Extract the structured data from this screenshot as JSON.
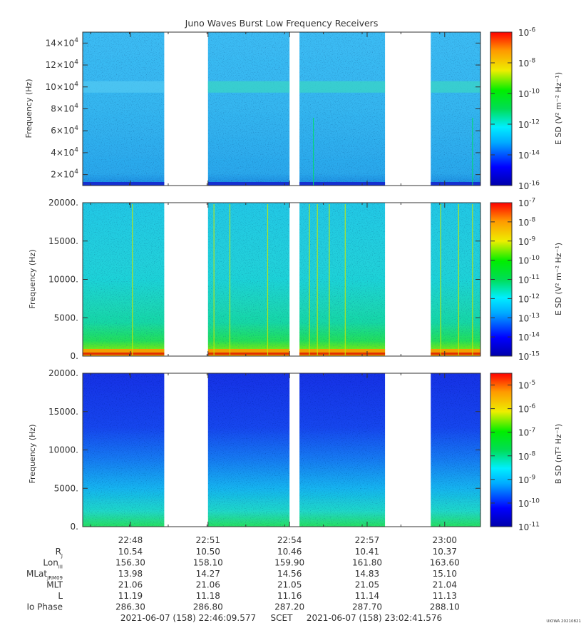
{
  "title": "Juno Waves Burst Low Frequency Receivers",
  "chart_data": [
    {
      "type": "heatmap",
      "name": "e-high",
      "ylabel": "Frequency (Hz)",
      "ylim": [
        10000,
        150000
      ],
      "yticks": [
        {
          "v": 20000,
          "m": "2×10",
          "e": "4"
        },
        {
          "v": 40000,
          "m": "4×10",
          "e": "4"
        },
        {
          "v": 60000,
          "m": "6×10",
          "e": "4"
        },
        {
          "v": 80000,
          "m": "8×10",
          "e": "4"
        },
        {
          "v": 100000,
          "m": "10×10",
          "e": "4"
        },
        {
          "v": 120000,
          "m": "12×10",
          "e": "4"
        },
        {
          "v": 140000,
          "m": "14×10",
          "e": "4"
        }
      ],
      "colorbar": {
        "label": "E SD (V² m⁻² Hz⁻¹)",
        "log_range": [
          -16,
          -6
        ],
        "ticks": [
          {
            "m": "10",
            "e": "-6"
          },
          {
            "m": "10",
            "e": "-8"
          },
          {
            "m": "10",
            "e": "-10"
          },
          {
            "m": "10",
            "e": "-12"
          },
          {
            "m": "10",
            "e": "-14"
          },
          {
            "m": "10",
            "e": "-16"
          }
        ]
      },
      "background_level": "cyan",
      "features": "narrow band near 1×10^5 Hz, noise floor line near 1.2×10^4 Hz"
    },
    {
      "type": "heatmap",
      "name": "e-low",
      "ylabel": "Frequency (Hz)",
      "ylim": [
        0,
        20000
      ],
      "yticks": [
        {
          "v": 0,
          "m": "0.",
          "e": ""
        },
        {
          "v": 5000,
          "m": "5000.",
          "e": ""
        },
        {
          "v": 10000,
          "m": "10000.",
          "e": ""
        },
        {
          "v": 15000,
          "m": "15000.",
          "e": ""
        },
        {
          "v": 20000,
          "m": "20000.",
          "e": ""
        }
      ],
      "colorbar": {
        "label": "E SD (V² m⁻² Hz⁻¹)",
        "log_range": [
          -15,
          -7
        ],
        "ticks": [
          {
            "m": "10",
            "e": "-7"
          },
          {
            "m": "10",
            "e": "-8"
          },
          {
            "m": "10",
            "e": "-9"
          },
          {
            "m": "10",
            "e": "-10"
          },
          {
            "m": "10",
            "e": "-11"
          },
          {
            "m": "10",
            "e": "-12"
          },
          {
            "m": "10",
            "e": "-13"
          },
          {
            "m": "10",
            "e": "-14"
          },
          {
            "m": "10",
            "e": "-15"
          }
        ]
      },
      "background_level": "cyan",
      "features": "intense emission below ~1000 Hz, vertical bursts"
    },
    {
      "type": "heatmap",
      "name": "b-low",
      "ylabel": "Frequency (Hz)",
      "ylim": [
        0,
        20000
      ],
      "yticks": [
        {
          "v": 0,
          "m": "0.",
          "e": ""
        },
        {
          "v": 5000,
          "m": "5000.",
          "e": ""
        },
        {
          "v": 10000,
          "m": "10000.",
          "e": ""
        },
        {
          "v": 15000,
          "m": "15000.",
          "e": ""
        },
        {
          "v": 20000,
          "m": "20000.",
          "e": ""
        }
      ],
      "colorbar": {
        "label": "B SD (nT² Hz⁻¹)",
        "log_range": [
          -11,
          -4.5
        ],
        "ticks": [
          {
            "m": "10",
            "e": "-5"
          },
          {
            "m": "10",
            "e": "-6"
          },
          {
            "m": "10",
            "e": "-7"
          },
          {
            "m": "10",
            "e": "-8"
          },
          {
            "m": "10",
            "e": "-9"
          },
          {
            "m": "10",
            "e": "-10"
          },
          {
            "m": "10",
            "e": "-11"
          }
        ]
      },
      "background_level": "blue",
      "features": "blue at high frequency grading to green below ~1000 Hz"
    }
  ],
  "time_axis": {
    "data_segments_fraction": [
      [
        0.0,
        0.205
      ],
      [
        0.315,
        0.52
      ],
      [
        0.545,
        0.76
      ],
      [
        0.875,
        1.0
      ]
    ],
    "ticks": [
      {
        "frac": 0.12,
        "label": "22:48"
      },
      {
        "frac": 0.315,
        "label": "22:51"
      },
      {
        "frac": 0.52,
        "label": "22:54"
      },
      {
        "frac": 0.715,
        "label": "22:57"
      },
      {
        "frac": 0.91,
        "label": "23:00"
      }
    ]
  },
  "ephemeris": {
    "rows": [
      {
        "name": "R",
        "sub": "J",
        "values": [
          "10.54",
          "10.50",
          "10.46",
          "10.41",
          "10.37"
        ]
      },
      {
        "name": "Lon",
        "sub": "III",
        "values": [
          "156.30",
          "158.10",
          "159.90",
          "161.80",
          "163.60"
        ]
      },
      {
        "name": "MLat",
        "sub": "JRM09",
        "values": [
          "13.98",
          "14.27",
          "14.56",
          "14.83",
          "15.10"
        ]
      },
      {
        "name": "MLT",
        "sub": "",
        "values": [
          "21.06",
          "21.06",
          "21.05",
          "21.05",
          "21.04"
        ]
      },
      {
        "name": "L",
        "sub": "",
        "values": [
          "11.19",
          "11.18",
          "11.16",
          "11.14",
          "11.13"
        ]
      },
      {
        "name": "Io Phase",
        "sub": "",
        "values": [
          "286.30",
          "286.80",
          "287.20",
          "287.70",
          "288.10"
        ]
      }
    ]
  },
  "footer": {
    "start": "2021-06-07 (158) 22:46:09.577",
    "scet": "SCET",
    "end": "2021-06-07 (158) 23:02:41.576",
    "credit": "UIOWA 20210821"
  }
}
